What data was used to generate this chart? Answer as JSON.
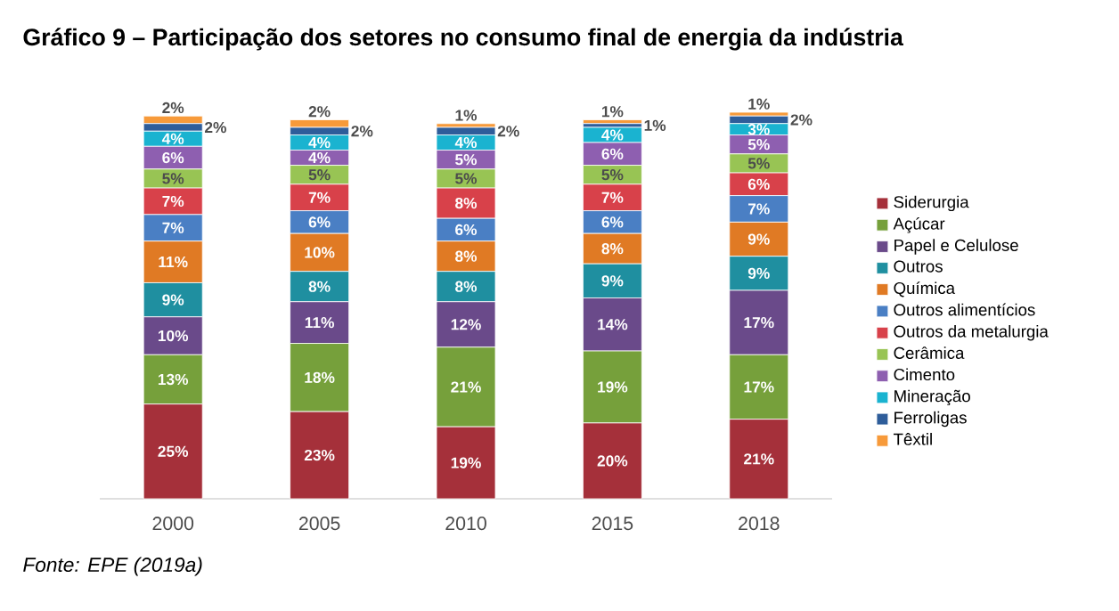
{
  "chart_data": {
    "type": "bar",
    "stacked": true,
    "title": "Gráfico 9 – Participação dos setores no consumo final de energia da indústria",
    "categories": [
      "2000",
      "2005",
      "2010",
      "2015",
      "2018"
    ],
    "series": [
      {
        "name": "Siderurgia",
        "color": "#a5303a",
        "values": [
          25,
          23,
          19,
          20,
          21
        ],
        "value_labels": [
          "25%",
          "23%",
          "19%",
          "20%",
          "21%"
        ]
      },
      {
        "name": "Açúcar",
        "color": "#76a03b",
        "values": [
          13,
          18,
          21,
          19,
          17
        ],
        "value_labels": [
          "13%",
          "18%",
          "21%",
          "19%",
          "17%"
        ]
      },
      {
        "name": "Papel e Celulose",
        "color": "#6a4a8a",
        "values": [
          10,
          11,
          12,
          14,
          17
        ],
        "value_labels": [
          "10%",
          "11%",
          "12%",
          "14%",
          "17%"
        ]
      },
      {
        "name": "Outros",
        "color": "#1f8fa0",
        "values": [
          9,
          8,
          8,
          9,
          9
        ],
        "value_labels": [
          "9%",
          "8%",
          "8%",
          "9%",
          "9%"
        ]
      },
      {
        "name": "Química",
        "color": "#e07a24",
        "values": [
          11,
          10,
          8,
          8,
          9
        ],
        "value_labels": [
          "11%",
          "10%",
          "8%",
          "8%",
          "9%"
        ]
      },
      {
        "name": "Outros alimentícios",
        "color": "#4a7fc4",
        "values": [
          7,
          6,
          6,
          6,
          7
        ],
        "value_labels": [
          "7%",
          "6%",
          "6%",
          "6%",
          "7%"
        ]
      },
      {
        "name": "Outros da metalurgia",
        "color": "#d8414a",
        "values": [
          7,
          7,
          8,
          7,
          6
        ],
        "value_labels": [
          "7%",
          "7%",
          "8%",
          "7%",
          "6%"
        ]
      },
      {
        "name": "Cerâmica",
        "color": "#98c454",
        "values": [
          5,
          5,
          5,
          5,
          5
        ],
        "value_labels": [
          "5%",
          "5%",
          "5%",
          "5%",
          "5%"
        ]
      },
      {
        "name": "Cimento",
        "color": "#8e5fb0",
        "values": [
          6,
          4,
          5,
          6,
          5
        ],
        "value_labels": [
          "6%",
          "4%",
          "5%",
          "6%",
          "5%"
        ]
      },
      {
        "name": "Mineração",
        "color": "#1ab3d0",
        "values": [
          4,
          4,
          4,
          4,
          3
        ],
        "value_labels": [
          "4%",
          "4%",
          "4%",
          "4%",
          "3%"
        ]
      },
      {
        "name": "Ferroligas",
        "color": "#2e5d9a",
        "values": [
          2,
          2,
          2,
          1,
          2
        ],
        "value_labels": [
          "2%",
          "2%",
          "2%",
          "1%",
          "2%"
        ]
      },
      {
        "name": "Têxtil",
        "color": "#f79a3a",
        "values": [
          2,
          2,
          1,
          1,
          1
        ],
        "value_labels": [
          "2%",
          "2%",
          "1%",
          "1%",
          "1%"
        ]
      }
    ],
    "legend": "right",
    "annotations": [
      "Fonte: EPE (2019a)"
    ]
  }
}
